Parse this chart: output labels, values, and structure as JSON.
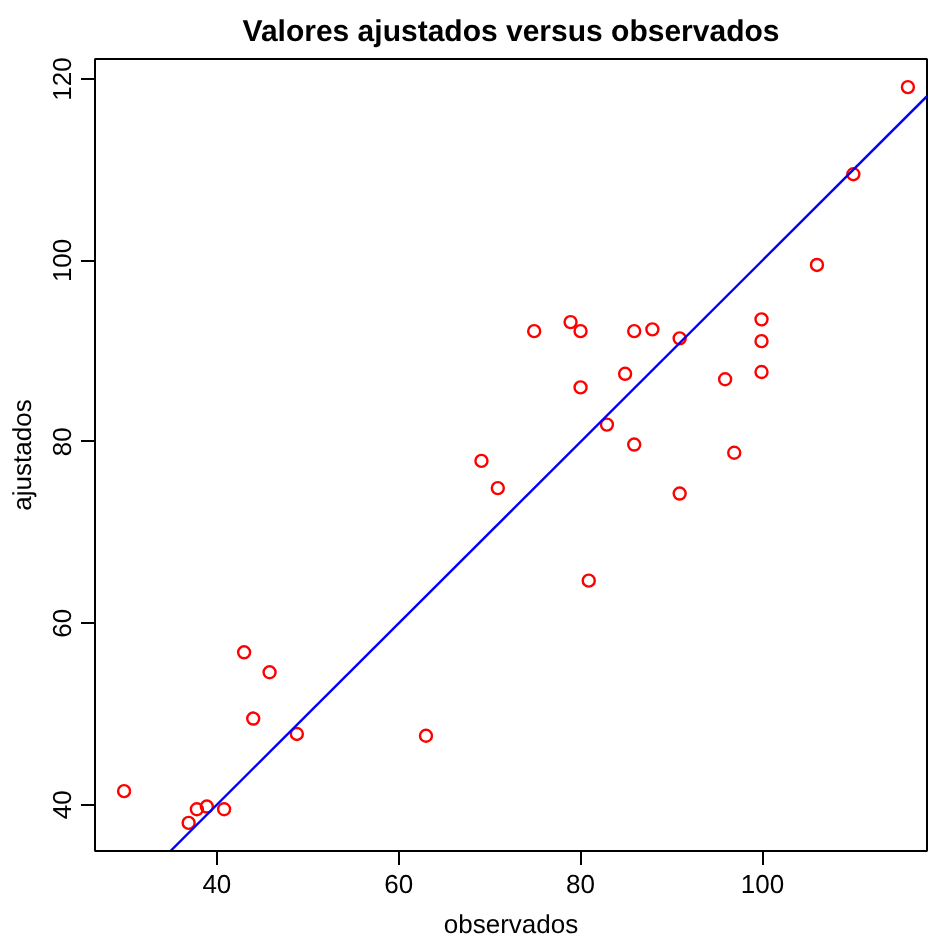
{
  "chart_data": {
    "type": "scatter",
    "title": "Valores ajustados versus observados",
    "xlabel": "observados",
    "ylabel": "ajustados",
    "xlim": [
      26.6,
      118.1
    ],
    "ylim": [
      34.9,
      122.2
    ],
    "xticks": [
      40,
      60,
      80,
      100
    ],
    "yticks": [
      40,
      60,
      80,
      100,
      120
    ],
    "grid": false,
    "marker": "circle",
    "series": [
      {
        "color": "#ff0000",
        "x": [
          29.8,
          36.9,
          37.8,
          38.9,
          40.8,
          43,
          44,
          45.8,
          48.8,
          63,
          69.1,
          70.9,
          74.9,
          78.9,
          80,
          80,
          80.9,
          82.9,
          84.9,
          85.9,
          87.9,
          85.9,
          90.9,
          90.9,
          95.9,
          96.9,
          99.9,
          99.9,
          99.9,
          106,
          110,
          116
        ],
        "values": [
          41.5,
          38,
          39.5,
          39.8,
          39.5,
          56.8,
          49.5,
          54.6,
          47.8,
          47.6,
          77.9,
          74.9,
          92.2,
          93.2,
          92.2,
          86,
          64.7,
          81.9,
          87.5,
          92.2,
          92.4,
          79.7,
          91.4,
          74.3,
          86.9,
          78.8,
          93.5,
          91.1,
          87.7,
          99.5,
          109.5,
          119.1
        ]
      },
      {
        "type": "line",
        "color": "#0000ff",
        "marker": "none",
        "x": [
          34.9,
          118.1
        ],
        "values": [
          34.9,
          118.1
        ]
      }
    ]
  }
}
